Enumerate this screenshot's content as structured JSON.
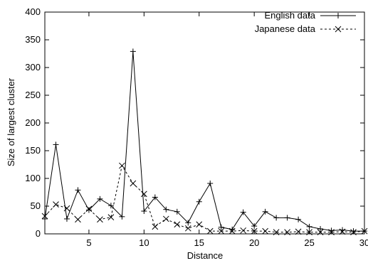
{
  "chart_data": {
    "type": "line",
    "title": "",
    "xlabel": "Distance",
    "ylabel": "Size of largest cluster",
    "xlim": [
      1,
      30
    ],
    "ylim": [
      0,
      400
    ],
    "xticks": [
      5,
      10,
      15,
      20,
      25,
      30
    ],
    "yticks": [
      0,
      50,
      100,
      150,
      200,
      250,
      300,
      350,
      400
    ],
    "grid": false,
    "legend_position": "top-right",
    "x": [
      1,
      2,
      3,
      4,
      5,
      6,
      7,
      8,
      9,
      10,
      11,
      12,
      13,
      14,
      15,
      16,
      17,
      18,
      19,
      20,
      21,
      22,
      23,
      24,
      25,
      26,
      27,
      28,
      29,
      30
    ],
    "series": [
      {
        "name": "English data",
        "marker": "plus",
        "line_style": "solid",
        "color": "#000000",
        "values": [
          27,
          161,
          27,
          79,
          43,
          63,
          51,
          31,
          329,
          41,
          66,
          44,
          40,
          20,
          58,
          91,
          12,
          8,
          39,
          14,
          40,
          29,
          29,
          26,
          13,
          9,
          6,
          7,
          5,
          5
        ]
      },
      {
        "name": "Japanese data",
        "marker": "cross",
        "line_style": "dashed",
        "color": "#000000",
        "values": [
          32,
          53,
          46,
          26,
          45,
          26,
          30,
          123,
          91,
          72,
          13,
          27,
          17,
          10,
          17,
          5,
          5,
          5,
          6,
          5,
          5,
          3,
          3,
          4,
          3,
          3,
          3,
          4,
          3,
          5
        ]
      }
    ]
  }
}
